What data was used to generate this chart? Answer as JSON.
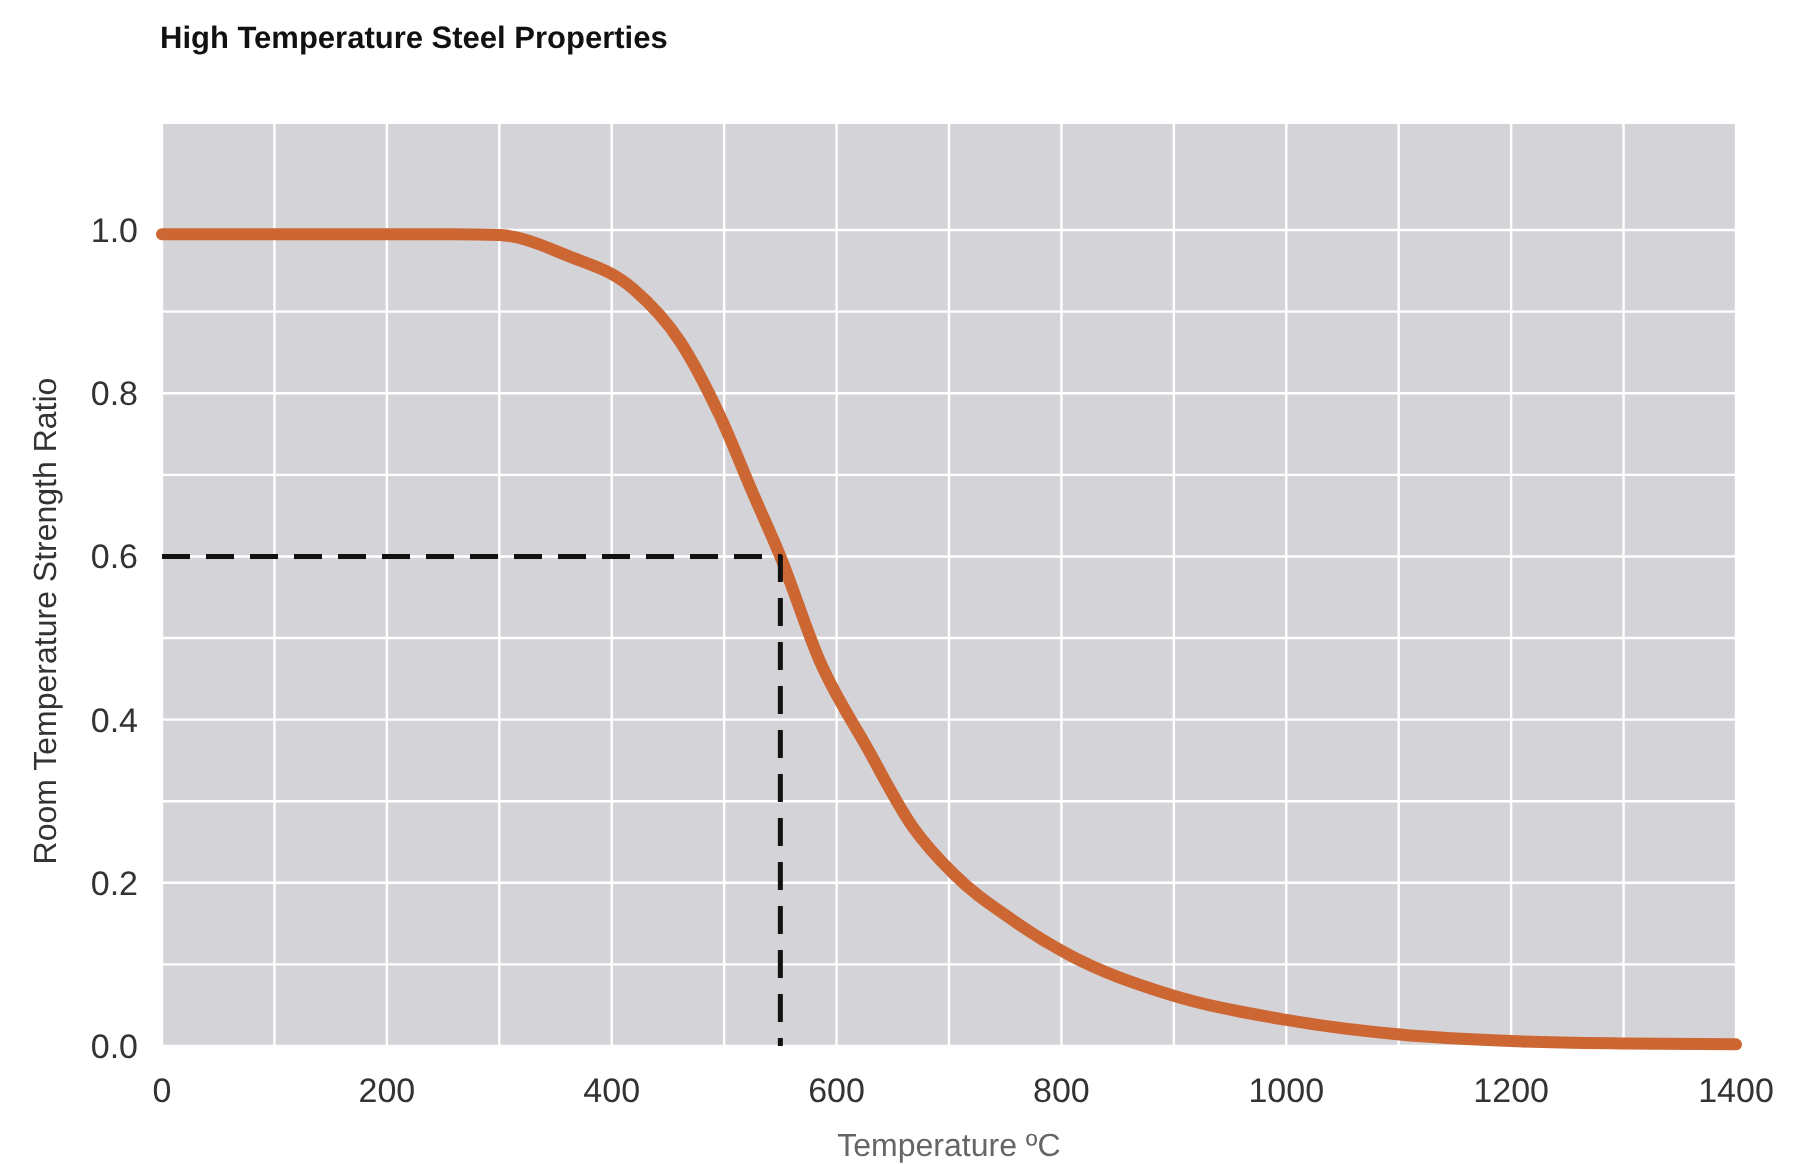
{
  "chart_data": {
    "type": "line",
    "title": "High Temperature Steel Properties",
    "xlabel": "Temperature ºC",
    "ylabel": "Room Temperature Strength Ratio",
    "xlim": [
      0,
      1400
    ],
    "xticks": [
      0,
      {
        "value": 100,
        "label": null
      },
      200,
      {
        "value": 300,
        "label": null
      },
      400,
      {
        "value": 500,
        "label": null
      },
      600,
      {
        "value": 700,
        "label": null
      },
      800,
      {
        "value": 900,
        "label": null
      },
      1000,
      {
        "value": 1100,
        "label": null
      },
      1200,
      {
        "value": 1300,
        "label": null
      },
      1400
    ],
    "ylim": [
      0,
      1.13
    ],
    "yticks": [
      {
        "value": 0,
        "label": "0.0"
      },
      {
        "value": 0.1,
        "label": null
      },
      0.2,
      {
        "value": 0.3,
        "label": null
      },
      0.4,
      {
        "value": 0.5,
        "label": null
      },
      0.6,
      {
        "value": 0.7,
        "label": null
      },
      0.8,
      {
        "value": 0.9,
        "label": null
      },
      {
        "value": 1,
        "label": "1.0"
      }
    ],
    "grid": true,
    "series": [
      {
        "color": "#cc6633",
        "x": [
          0,
          100,
          200,
          260,
          300,
          360,
          419,
          461,
          496,
          526,
          550,
          585,
          627,
          668,
          704,
          757,
          805,
          894,
          1000,
          1101,
          1200,
          1300,
          1400
        ],
        "values": [
          0.995,
          0.995,
          0.995,
          0.995,
          0.994,
          0.969,
          0.928,
          0.863,
          0.773,
          0.676,
          0.6,
          0.472,
          0.366,
          0.268,
          0.211,
          0.154,
          0.113,
          0.064,
          0.032,
          0.014,
          0.006,
          0.003,
          0.002
        ]
      },
      {
        "type": "line",
        "color": "#111111",
        "line_style": "dashed",
        "x": [
          0,
          550,
          550
        ],
        "values": [
          0.6,
          0.6,
          0
        ]
      }
    ]
  }
}
